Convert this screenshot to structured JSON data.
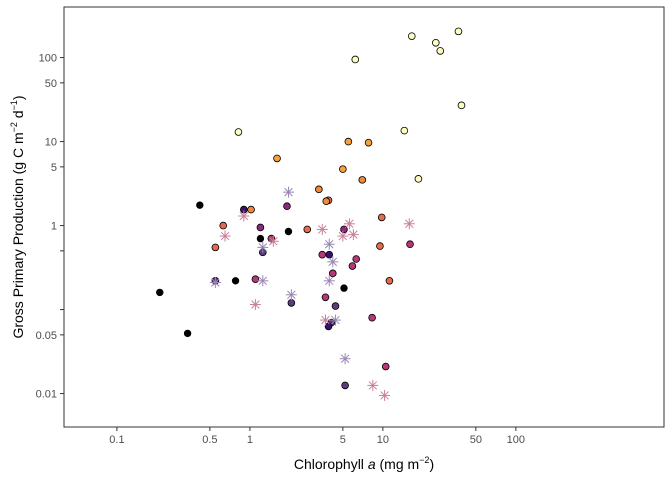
{
  "chart_data": {
    "type": "scatter",
    "xlabel": "Chlorophyll a (mg m^-2)",
    "ylabel": "Gross Primary Production (g C m^-2 d^-1)",
    "x_scale": "log10",
    "y_scale": "log10",
    "xlim": [
      0.04,
      1300
    ],
    "ylim": [
      0.004,
      400
    ],
    "x_ticks": [
      0.1,
      0.5,
      1,
      5,
      10,
      50,
      100
    ],
    "x_tick_labels": [
      "0.1",
      "0.5",
      "1",
      "5",
      "10",
      "50",
      "100"
    ],
    "y_ticks": [
      0.01,
      0.05,
      0.1,
      0.5,
      1,
      5,
      10,
      50,
      100
    ],
    "y_tick_labels": [
      "0.01",
      "0.05",
      "1",
      "5",
      "10",
      "50",
      "100"
    ],
    "y_tick_label_values": [
      0.01,
      0.05,
      1,
      5,
      10,
      50,
      100
    ],
    "grid": false,
    "legend": "none",
    "colors": {
      "black": "#000004",
      "dark_purple": "#3b0f70",
      "purple": "#5c3c7e",
      "magenta": "#8c2981",
      "rose": "#b73779",
      "coral": "#e8694e",
      "orange": "#f1883a",
      "amber": "#f6a13a",
      "yellow": "#fcfdbf",
      "star_purple": "#9a86b5",
      "star_pink": "#c97f9a"
    },
    "series": [
      {
        "marker": "filled_circle",
        "points": [
          {
            "x": 0.21,
            "y": 0.16,
            "c": "black"
          },
          {
            "x": 0.34,
            "y": 0.052,
            "c": "black"
          },
          {
            "x": 0.42,
            "y": 1.75,
            "c": "black"
          },
          {
            "x": 0.78,
            "y": 0.22,
            "c": "black"
          },
          {
            "x": 1.2,
            "y": 0.7,
            "c": "black"
          },
          {
            "x": 1.95,
            "y": 0.85,
            "c": "black"
          },
          {
            "x": 5.1,
            "y": 0.18,
            "c": "black"
          }
        ]
      },
      {
        "marker": "circle_outlined",
        "points": [
          {
            "x": 0.55,
            "y": 0.22,
            "c": "purple"
          },
          {
            "x": 0.9,
            "y": 1.55,
            "c": "dark_purple"
          },
          {
            "x": 1.2,
            "y": 0.95,
            "c": "magenta"
          },
          {
            "x": 1.1,
            "y": 0.23,
            "c": "rose"
          },
          {
            "x": 1.25,
            "y": 0.48,
            "c": "purple"
          },
          {
            "x": 1.45,
            "y": 0.7,
            "c": "rose"
          },
          {
            "x": 1.9,
            "y": 1.7,
            "c": "magenta"
          },
          {
            "x": 2.05,
            "y": 0.12,
            "c": "purple"
          },
          {
            "x": 3.5,
            "y": 0.45,
            "c": "rose"
          },
          {
            "x": 3.95,
            "y": 0.45,
            "c": "dark_purple"
          },
          {
            "x": 4.2,
            "y": 0.27,
            "c": "rose"
          },
          {
            "x": 3.7,
            "y": 0.14,
            "c": "rose"
          },
          {
            "x": 4.4,
            "y": 0.11,
            "c": "purple"
          },
          {
            "x": 4.1,
            "y": 0.07,
            "c": "purple"
          },
          {
            "x": 3.9,
            "y": 0.063,
            "c": "dark_purple"
          },
          {
            "x": 5.1,
            "y": 0.9,
            "c": "magenta"
          },
          {
            "x": 5.9,
            "y": 0.33,
            "c": "rose"
          },
          {
            "x": 6.3,
            "y": 0.4,
            "c": "rose"
          },
          {
            "x": 8.3,
            "y": 0.08,
            "c": "rose"
          },
          {
            "x": 10.5,
            "y": 0.021,
            "c": "rose"
          },
          {
            "x": 5.2,
            "y": 0.0125,
            "c": "purple"
          },
          {
            "x": 16.0,
            "y": 0.6,
            "c": "rose"
          }
        ]
      },
      {
        "marker": "circle_outlined",
        "points": [
          {
            "x": 0.55,
            "y": 0.55,
            "c": "coral"
          },
          {
            "x": 0.63,
            "y": 1.0,
            "c": "coral"
          },
          {
            "x": 2.7,
            "y": 0.9,
            "c": "coral"
          },
          {
            "x": 3.9,
            "y": 2.0,
            "c": "coral"
          },
          {
            "x": 9.5,
            "y": 0.57,
            "c": "coral"
          },
          {
            "x": 9.8,
            "y": 1.25,
            "c": "coral"
          },
          {
            "x": 11.2,
            "y": 0.22,
            "c": "coral"
          },
          {
            "x": 1.02,
            "y": 1.55,
            "c": "orange"
          },
          {
            "x": 3.3,
            "y": 2.7,
            "c": "orange"
          },
          {
            "x": 3.75,
            "y": 1.95,
            "c": "orange"
          },
          {
            "x": 7.0,
            "y": 3.5,
            "c": "orange"
          },
          {
            "x": 1.6,
            "y": 6.3,
            "c": "amber"
          },
          {
            "x": 5.0,
            "y": 4.7,
            "c": "amber"
          },
          {
            "x": 5.5,
            "y": 10.0,
            "c": "amber"
          },
          {
            "x": 7.8,
            "y": 9.7,
            "c": "amber"
          }
        ]
      },
      {
        "marker": "circle_outlined",
        "points": [
          {
            "x": 0.82,
            "y": 13.0,
            "c": "yellow"
          },
          {
            "x": 6.2,
            "y": 95.0,
            "c": "yellow"
          },
          {
            "x": 14.5,
            "y": 13.5,
            "c": "yellow"
          },
          {
            "x": 16.5,
            "y": 180.0,
            "c": "yellow"
          },
          {
            "x": 18.5,
            "y": 3.6,
            "c": "yellow"
          },
          {
            "x": 25.0,
            "y": 150.0,
            "c": "yellow"
          },
          {
            "x": 27.0,
            "y": 120.0,
            "c": "yellow"
          },
          {
            "x": 37.0,
            "y": 205.0,
            "c": "yellow"
          },
          {
            "x": 39.0,
            "y": 27.0,
            "c": "yellow"
          }
        ]
      },
      {
        "marker": "asterisk",
        "points": [
          {
            "x": 0.55,
            "y": 0.21,
            "c": "star_purple"
          },
          {
            "x": 0.65,
            "y": 0.75,
            "c": "star_pink"
          },
          {
            "x": 0.9,
            "y": 1.3,
            "c": "star_pink"
          },
          {
            "x": 1.1,
            "y": 0.115,
            "c": "star_pink"
          },
          {
            "x": 1.25,
            "y": 0.22,
            "c": "star_purple"
          },
          {
            "x": 1.25,
            "y": 0.55,
            "c": "star_purple"
          },
          {
            "x": 1.5,
            "y": 0.65,
            "c": "star_pink"
          },
          {
            "x": 1.95,
            "y": 2.5,
            "c": "star_purple"
          },
          {
            "x": 2.05,
            "y": 0.15,
            "c": "star_purple"
          },
          {
            "x": 3.5,
            "y": 0.9,
            "c": "star_pink"
          },
          {
            "x": 3.7,
            "y": 0.075,
            "c": "star_pink"
          },
          {
            "x": 3.95,
            "y": 0.6,
            "c": "star_purple"
          },
          {
            "x": 3.95,
            "y": 0.22,
            "c": "star_purple"
          },
          {
            "x": 4.2,
            "y": 0.37,
            "c": "star_purple"
          },
          {
            "x": 4.4,
            "y": 0.075,
            "c": "star_purple"
          },
          {
            "x": 5.0,
            "y": 0.75,
            "c": "star_pink"
          },
          {
            "x": 5.2,
            "y": 0.026,
            "c": "star_purple"
          },
          {
            "x": 5.6,
            "y": 1.05,
            "c": "star_pink"
          },
          {
            "x": 6.0,
            "y": 0.78,
            "c": "star_pink"
          },
          {
            "x": 8.4,
            "y": 0.0125,
            "c": "star_pink"
          },
          {
            "x": 10.3,
            "y": 0.0095,
            "c": "star_pink"
          },
          {
            "x": 15.8,
            "y": 1.05,
            "c": "star_pink"
          }
        ]
      }
    ]
  }
}
